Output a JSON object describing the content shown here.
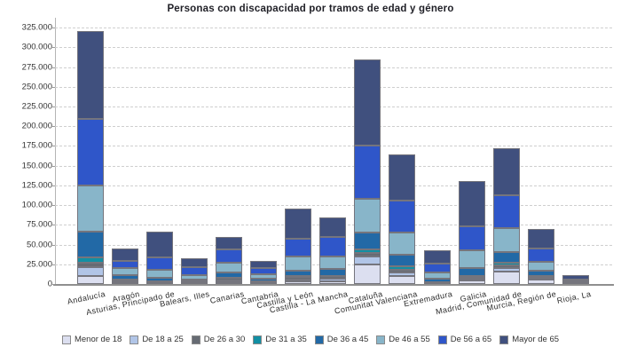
{
  "title": "Personas con discapacidad por tramos de edad y género",
  "chart_data": {
    "type": "bar",
    "stacked": true,
    "title": "Personas con discapacidad por tramos de edad y género",
    "xlabel": "",
    "ylabel": "",
    "ylim": [
      0,
      337500
    ],
    "ytick_step": 25000,
    "ytick_labels": [
      "0",
      "25.000",
      "50.000",
      "75.000",
      "100.000",
      "125.000",
      "150.000",
      "175.000",
      "200.000",
      "225.000",
      "250.000",
      "275.000",
      "300.000",
      "325.000"
    ],
    "grid": "horizontal-dashed",
    "legend_position": "bottom",
    "categories": [
      "Andalucía",
      "Aragón",
      "Asturias, Principado de",
      "Balears, Illes",
      "Canarias",
      "Cantabria",
      "Castilla y León",
      "Castilla - La Mancha",
      "Cataluña",
      "Comunitat Valenciana",
      "Extremadura",
      "Galicia",
      "Madrid, Comunidad de",
      "Murcia, Región de",
      "Rioja, La"
    ],
    "series": [
      {
        "name": "Menor de 18",
        "color": "#dcdff0",
        "values": [
          10200,
          1300,
          1000,
          1000,
          2300,
          1200,
          3000,
          3700,
          24500,
          10200,
          900,
          5000,
          16200,
          5600,
          600
        ]
      },
      {
        "name": "De 18 a 25",
        "color": "#b1c5e7",
        "values": [
          11300,
          1000,
          800,
          800,
          2600,
          1000,
          2900,
          3000,
          10200,
          4500,
          700,
          2000,
          3800,
          2400,
          400
        ]
      },
      {
        "name": "De 26 a 30",
        "color": "#666b73",
        "values": [
          5600,
          2600,
          900,
          1000,
          3000,
          800,
          3000,
          3000,
          4900,
          3800,
          500,
          1500,
          3400,
          1200,
          300
        ]
      },
      {
        "name": "De 31 a 35",
        "color": "#128fa3",
        "values": [
          6800,
          800,
          700,
          500,
          500,
          700,
          800,
          1000,
          4500,
          3800,
          500,
          1200,
          3800,
          1000,
          200
        ]
      },
      {
        "name": "De 36 a 45",
        "color": "#2269a6",
        "values": [
          32700,
          5300,
          4900,
          2300,
          6400,
          3000,
          7500,
          8200,
          21400,
          14300,
          4500,
          10200,
          13200,
          6800,
          600
        ]
      },
      {
        "name": "De 46 a 55",
        "color": "#88b5c9",
        "values": [
          58300,
          9000,
          9400,
          5300,
          12500,
          6000,
          17300,
          15800,
          42500,
          28200,
          7500,
          22600,
          30100,
          11300,
          1200
        ]
      },
      {
        "name": "De 56 a 65",
        "color": "#2f56c9",
        "values": [
          84600,
          9800,
          15800,
          10500,
          16900,
          7500,
          22600,
          24500,
          67700,
          41400,
          11300,
          31200,
          42500,
          16600,
          2600
        ]
      },
      {
        "name": "Mayor de 65",
        "color": "#40507e",
        "values": [
          111000,
          15500,
          32400,
          11300,
          15000,
          9000,
          38400,
          25200,
          108400,
          58300,
          16900,
          57200,
          59000,
          24800,
          5300
        ]
      }
    ]
  }
}
